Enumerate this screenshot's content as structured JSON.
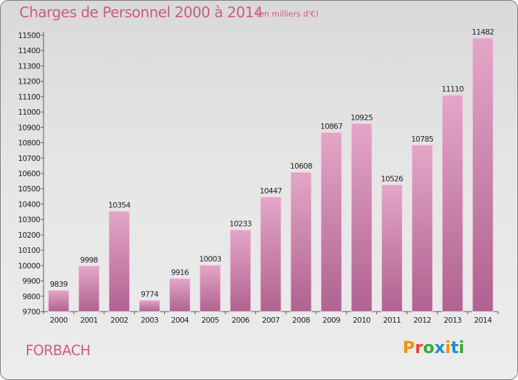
{
  "header": {
    "title": "Charges de Personnel 2000 à 2014",
    "subtitle": "(en milliers d'€)"
  },
  "footer": {
    "city": "FORBACH",
    "logo_text": "Proxiti",
    "logo_colors": [
      "#f39200",
      "#e8403a",
      "#3aa935",
      "#1d8ed0",
      "#f39200",
      "#1d8ed0",
      "#3aa935"
    ]
  },
  "colors": {
    "accent": "#cf5a82",
    "bar_top": "#e3a6c8",
    "bar_bottom": "#b06290",
    "bar_edge": "#f3d2e3"
  },
  "chart_data": {
    "type": "bar",
    "title": "Charges de Personnel 2000 à 2014",
    "subtitle": "(en milliers d'€)",
    "categories": [
      "2000",
      "2001",
      "2002",
      "2003",
      "2004",
      "2005",
      "2006",
      "2007",
      "2008",
      "2009",
      "2010",
      "2011",
      "2012",
      "2013",
      "2014"
    ],
    "values": [
      9839,
      9998,
      10354,
      9774,
      9916,
      10003,
      10233,
      10447,
      10608,
      10867,
      10925,
      10526,
      10785,
      11110,
      11482
    ],
    "ylim": [
      9700,
      11500
    ],
    "yticks": [
      9700,
      9800,
      9900,
      10000,
      10100,
      10200,
      10300,
      10400,
      10500,
      10600,
      10700,
      10800,
      10900,
      11000,
      11100,
      11200,
      11300,
      11400,
      11500
    ],
    "grid": false,
    "legend": "none"
  }
}
